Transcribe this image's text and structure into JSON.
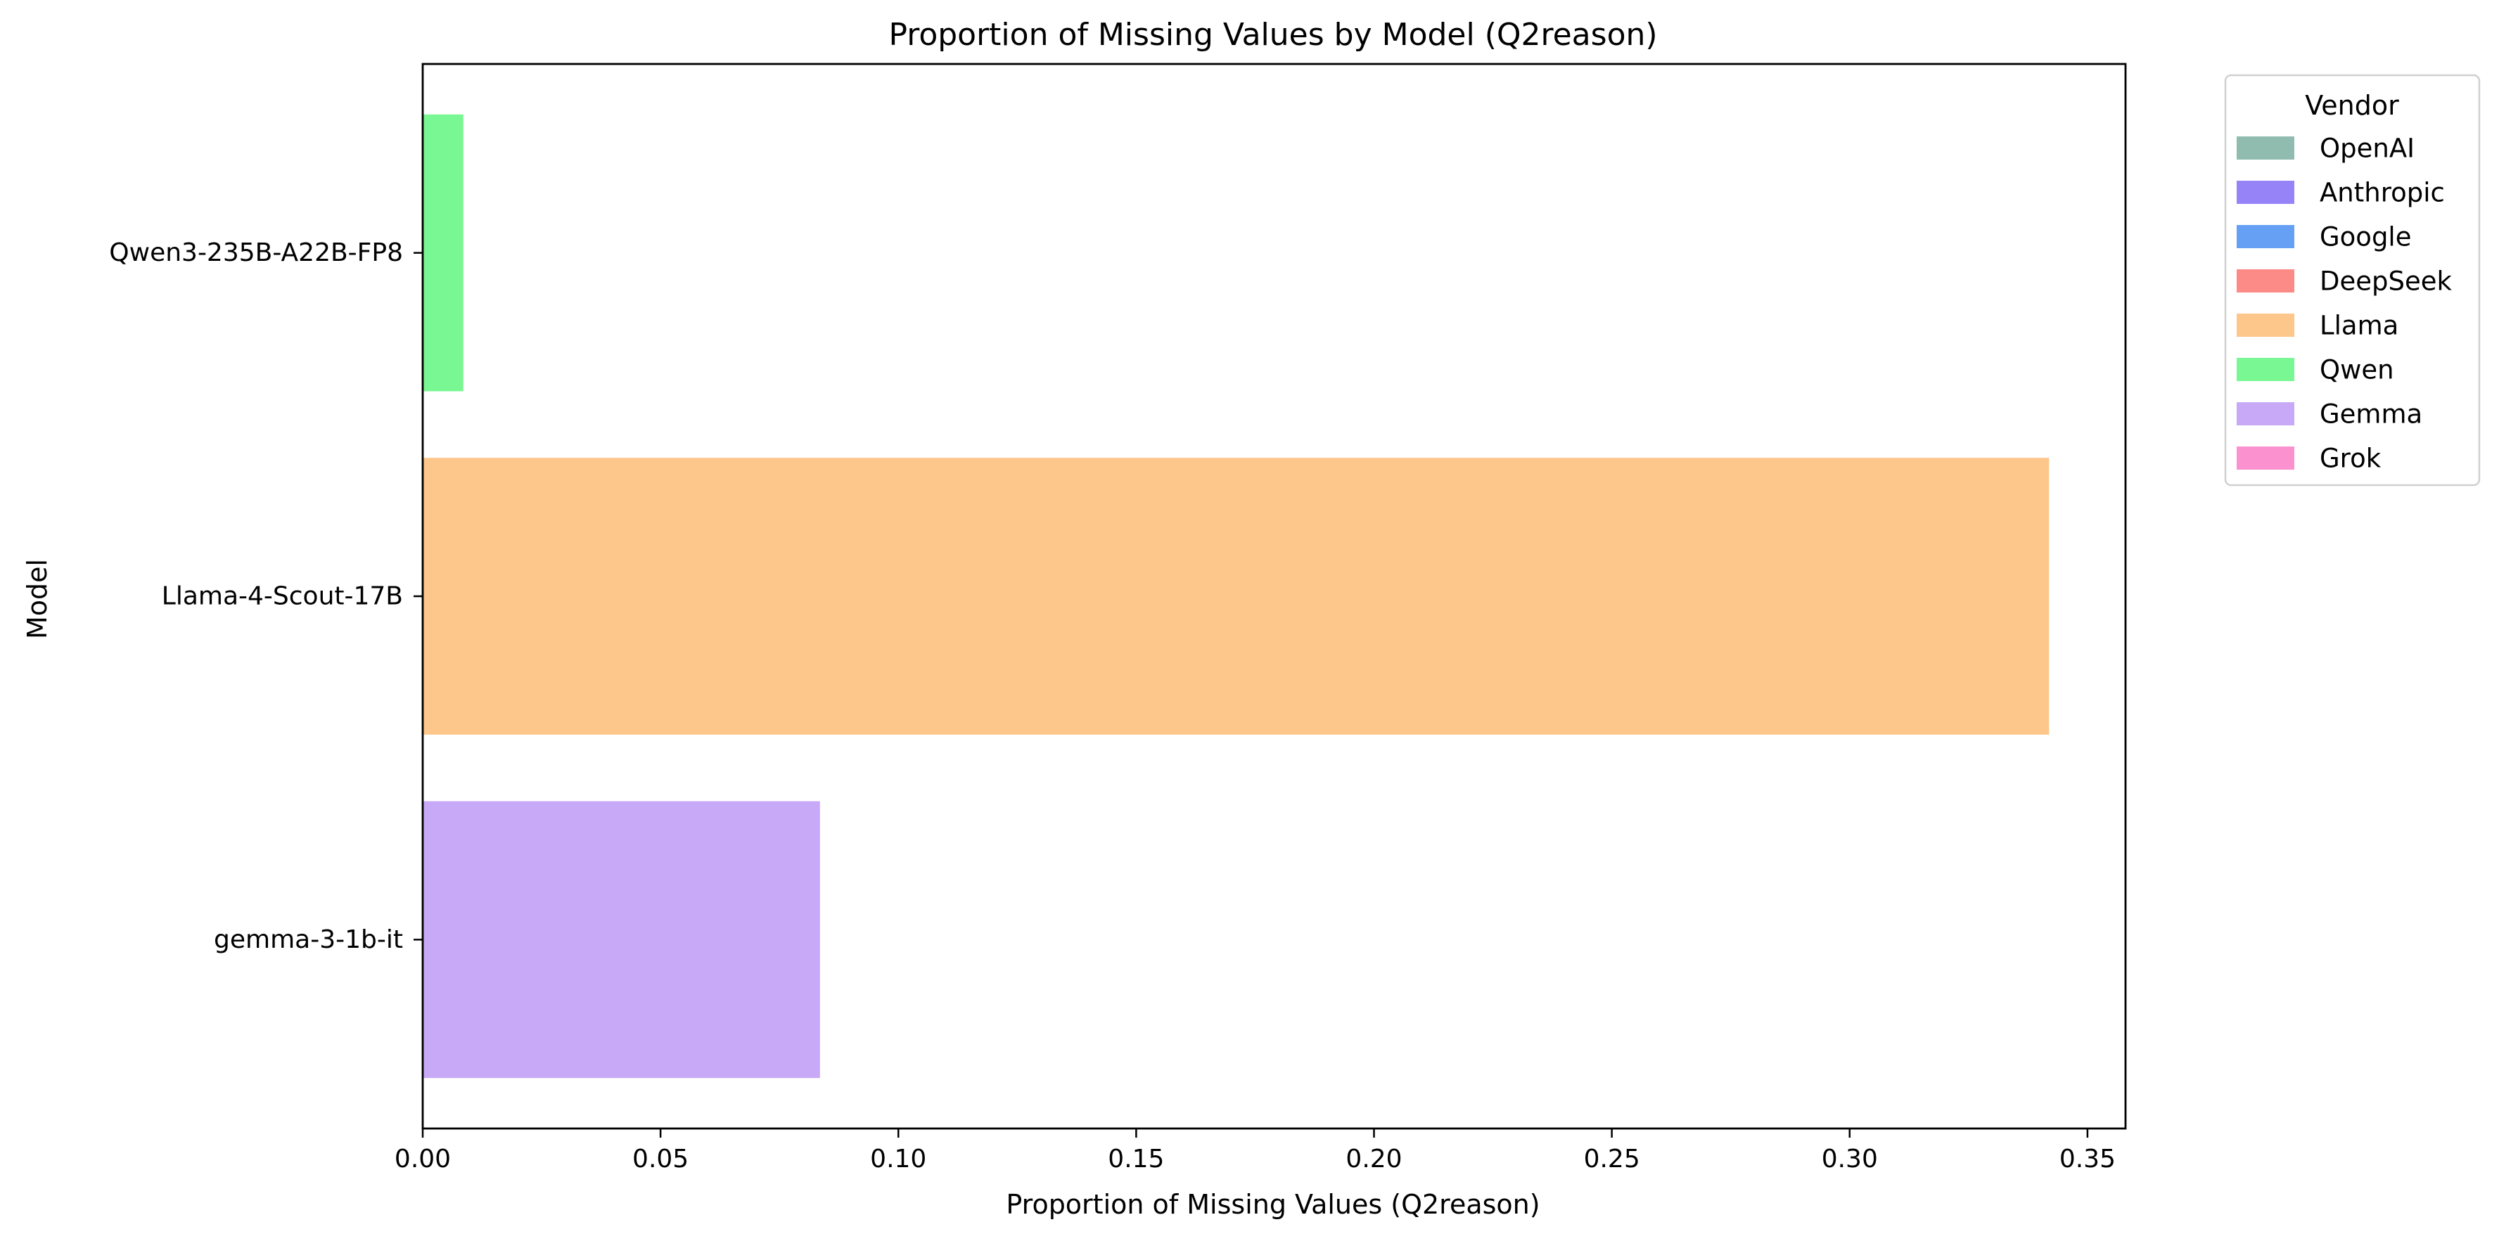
{
  "chart_data": {
    "type": "bar",
    "orientation": "horizontal",
    "title": "Proportion of Missing Values by Model (Q2reason)",
    "xlabel": "Proportion of Missing Values (Q2reason)",
    "ylabel": "Model",
    "xlim": [
      0,
      0.358
    ],
    "xticks": [
      0.0,
      0.05,
      0.1,
      0.15,
      0.2,
      0.25,
      0.3,
      0.35
    ],
    "xtick_labels": [
      "0.00",
      "0.05",
      "0.10",
      "0.15",
      "0.20",
      "0.25",
      "0.30",
      "0.35"
    ],
    "grid": false,
    "categories": [
      "Qwen3-235B-A22B-FP8",
      "Llama-4-Scout-17B",
      "gemma-3-1b-it"
    ],
    "values": [
      0.0083,
      0.3417,
      0.0833
    ],
    "bar_vendors": [
      "Qwen",
      "Llama",
      "Gemma"
    ],
    "legend": {
      "title": "Vendor",
      "placement": "outside-top-right",
      "entries": [
        {
          "label": "OpenAI",
          "color": "#8fbcaf"
        },
        {
          "label": "Anthropic",
          "color": "#9583f7"
        },
        {
          "label": "Google",
          "color": "#66a0f5"
        },
        {
          "label": "DeepSeek",
          "color": "#fc8a86"
        },
        {
          "label": "Llama",
          "color": "#fdc68a"
        },
        {
          "label": "Qwen",
          "color": "#78f792"
        },
        {
          "label": "Gemma",
          "color": "#c8a9f7"
        },
        {
          "label": "Grok",
          "color": "#fb92cf"
        }
      ]
    }
  }
}
